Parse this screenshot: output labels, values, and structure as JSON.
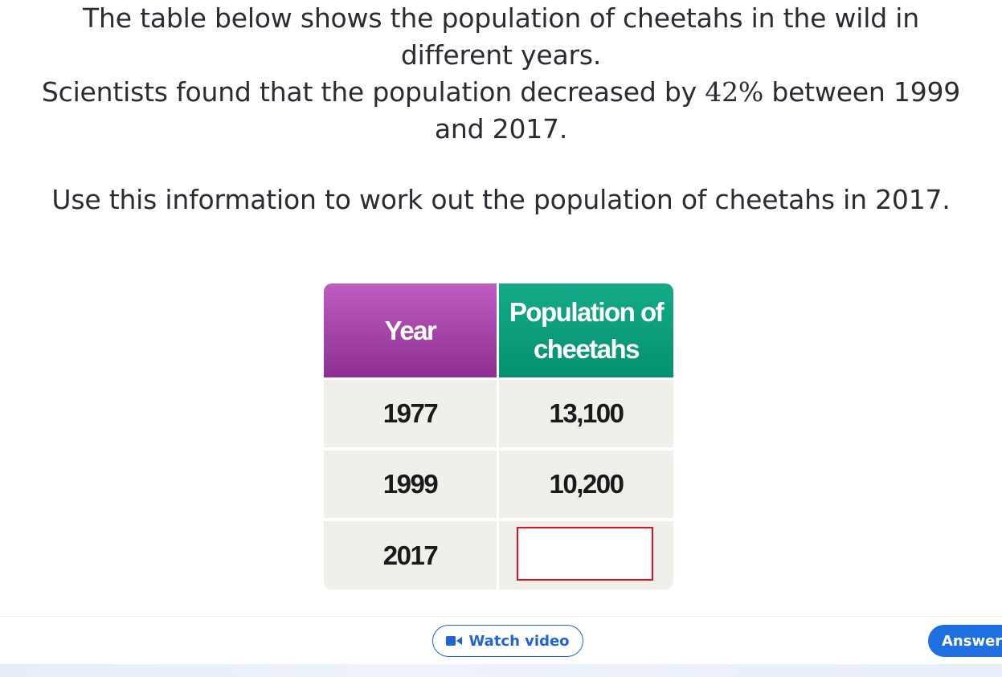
{
  "question": {
    "line1": "The table below shows the population of cheetahs in the wild in",
    "line2": "different years.",
    "line3_before": "Scientists found that the population decreased by ",
    "line3_math": "42%",
    "line3_after": " between 1999",
    "line4": "and 2017.",
    "line5": "Use this information to work out the population of cheetahs in 2017."
  },
  "table": {
    "headers": {
      "year": "Year",
      "population_line1": "Population of",
      "population_line2": "cheetahs"
    },
    "rows": [
      {
        "year": "1977",
        "population": "13,100"
      },
      {
        "year": "1999",
        "population": "10,200"
      },
      {
        "year": "2017",
        "population": ""
      }
    ]
  },
  "buttons": {
    "watch_video": "Watch video",
    "answer": "Answer"
  },
  "icons": {
    "watch": "video-camera-icon"
  },
  "colors": {
    "year_header": "#a844ab",
    "population_header": "#0a9d7c",
    "accent_blue": "#1f63d6",
    "answer_box_border": "#e0141e"
  }
}
